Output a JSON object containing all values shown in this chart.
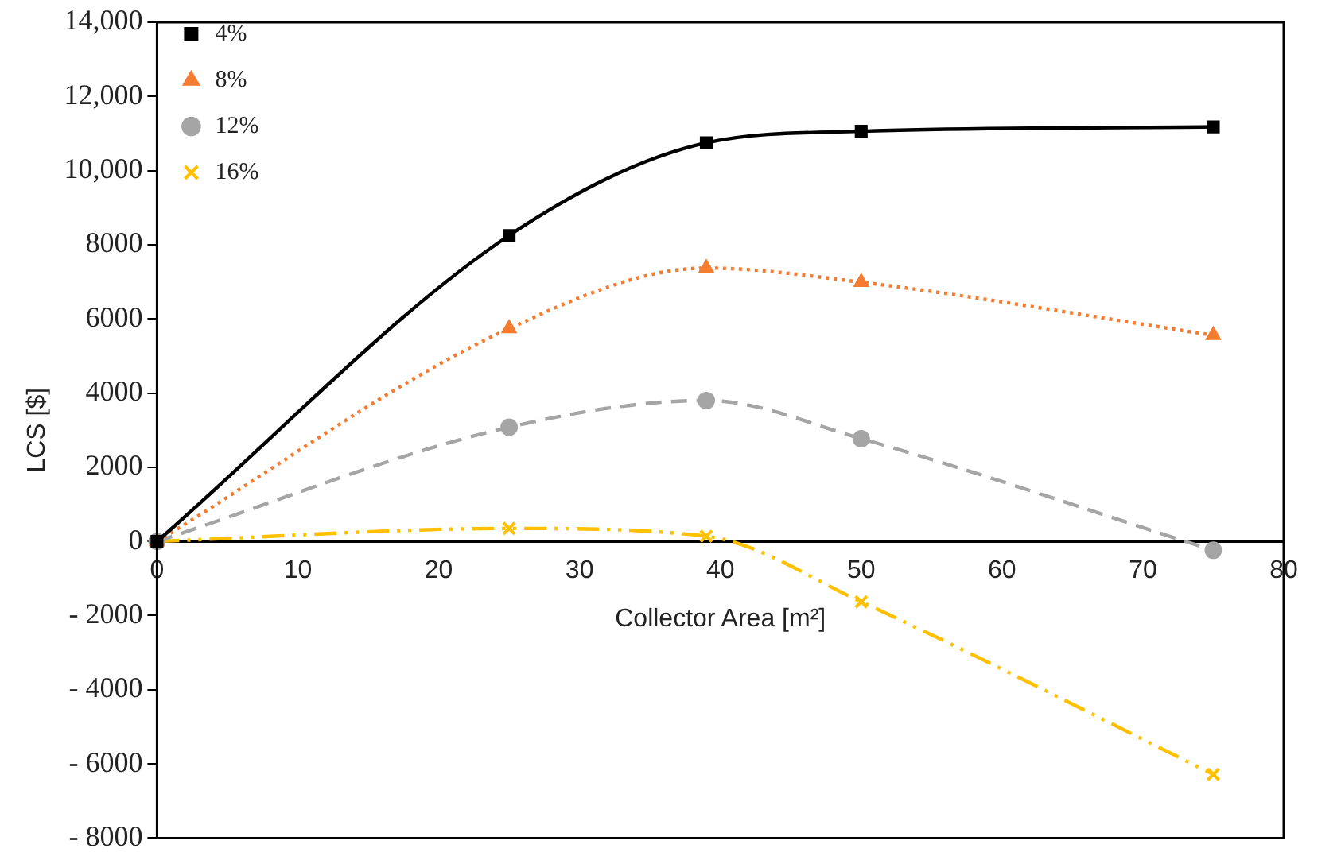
{
  "chart_data": {
    "type": "line",
    "xlabel": "Collector Area [m²]",
    "ylabel": "LCS [$]",
    "x": [
      0,
      25,
      39,
      50,
      75
    ],
    "xlim": [
      0,
      80
    ],
    "xticks": [
      0,
      10,
      20,
      30,
      40,
      50,
      60,
      70,
      80
    ],
    "ylim": [
      -8000,
      14000
    ],
    "yticks": [
      {
        "value": -8000,
        "label": "- 8000"
      },
      {
        "value": -6000,
        "label": "- 6000"
      },
      {
        "value": -4000,
        "label": "- 4000"
      },
      {
        "value": -2000,
        "label": "- 2000"
      },
      0,
      2000,
      4000,
      6000,
      8000,
      {
        "value": 10000,
        "label": "10,000"
      },
      {
        "value": 12000,
        "label": "12,000"
      },
      {
        "value": 14000,
        "label": "14,000"
      }
    ],
    "grid": false,
    "legend": "top left",
    "series": [
      {
        "name": "4%",
        "color": "#000000",
        "marker": "square",
        "line_style": "solid",
        "values": [
          0,
          8250,
          10750,
          11060,
          11180
        ]
      },
      {
        "name": "8%",
        "color": "#f47c30",
        "marker": "triangle",
        "line_style": "dotted",
        "values": [
          0,
          5740,
          7370,
          6990,
          5560
        ]
      },
      {
        "name": "12%",
        "color": "#a5a5a5",
        "marker": "circle",
        "line_style": "dashed",
        "values": [
          0,
          3080,
          3800,
          2770,
          -240
        ]
      },
      {
        "name": "16%",
        "color": "#ffc000",
        "marker": "cross",
        "line_style": "dashdot",
        "values": [
          0,
          350,
          140,
          -1630,
          -6280
        ]
      }
    ]
  }
}
